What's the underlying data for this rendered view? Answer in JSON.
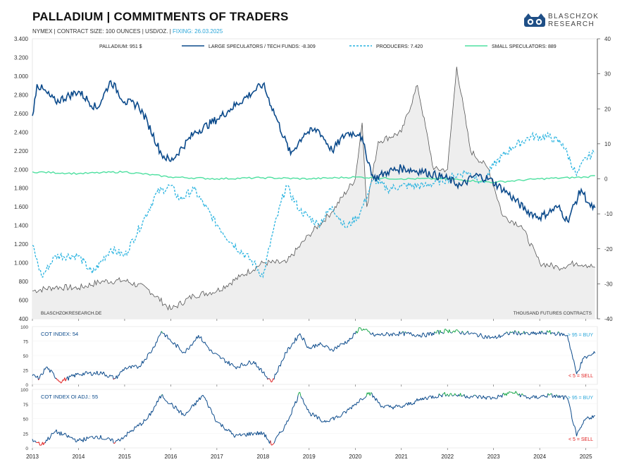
{
  "header": {
    "title": "PALLADIUM | COMMITMENTS OF TRADERS",
    "subtitle_main": "NYMEX | CONTRACT SIZE: 100 OUNCES | USD/OZ. | ",
    "subtitle_fixing": "FIXING: 26.03.2025"
  },
  "logo": {
    "line1": "BLASCHZOK",
    "line2": "RESEARCH",
    "icon": "owl-logo-icon"
  },
  "colors": {
    "price": "#555555",
    "large_specs": "#0b4a8b",
    "producers": "#29b3e0",
    "small_specs": "#4ee0a0",
    "cot_high": "#1aa84a",
    "cot_low": "#e02020",
    "cot_mid": "#0b4a8b"
  },
  "chart_data": [
    {
      "type": "line",
      "title": "PALLADIUM | COMMITMENTS OF TRADERS",
      "x_ticks": [
        "2013",
        "2014",
        "2015",
        "2016",
        "2017",
        "2018",
        "2019",
        "2020",
        "2021",
        "2022",
        "2023",
        "2024",
        "2025"
      ],
      "y_left": {
        "unit": "USD/OZ.",
        "ylim": [
          400,
          3400
        ],
        "ticks": [
          "3.400",
          "3.200",
          "3.000",
          "2.800",
          "2.600",
          "2.400",
          "2.200",
          "2.000",
          "1.800",
          "1.600",
          "1.400",
          "1.200",
          "1.000",
          "800",
          "600",
          "400"
        ]
      },
      "y_right": {
        "unit": "THOUSAND FUTURES CONTRACTS",
        "ylim": [
          -40,
          40
        ],
        "ticks": [
          "40",
          "30",
          "20",
          "10",
          "0",
          "-10",
          "-20",
          "-30",
          "-40"
        ]
      },
      "legend": [
        {
          "label": "PALLADIUM: 951 $",
          "style": "solid",
          "color": "#555555"
        },
        {
          "label": "LARGE SPECULATORS / TECH FUNDS: -8.309",
          "style": "solid",
          "color": "#0b4a8b"
        },
        {
          "label": "PRODUCERS: 7.420",
          "style": "dashed",
          "color": "#29b3e0"
        },
        {
          "label": "SMALL SPECULATORS: 889",
          "style": "solid",
          "color": "#4ee0a0"
        }
      ],
      "notes": {
        "bottom_left": "BLASCHZOKRESEARCH.DE",
        "bottom_right": "THOUSAND FUTURES CONTRACTS"
      },
      "series": [
        {
          "name": "PALLADIUM: 951 $",
          "axis": "left",
          "x": [
            2013.0,
            2013.5,
            2014.0,
            2014.5,
            2015.0,
            2015.5,
            2016.0,
            2016.5,
            2017.0,
            2017.5,
            2018.0,
            2018.5,
            2019.0,
            2019.5,
            2020.0,
            2020.15,
            2020.25,
            2020.5,
            2021.0,
            2021.35,
            2021.7,
            2022.0,
            2022.2,
            2022.5,
            2022.9,
            2023.2,
            2023.6,
            2024.0,
            2024.4,
            2024.8,
            2025.0,
            2025.2
          ],
          "values": [
            700,
            740,
            730,
            800,
            810,
            720,
            500,
            650,
            700,
            850,
            1000,
            1000,
            1300,
            1550,
            1900,
            2500,
            1600,
            2300,
            2400,
            2900,
            2000,
            2000,
            3100,
            2200,
            2000,
            1500,
            1400,
            1000,
            950,
            1000,
            980,
            951
          ]
        },
        {
          "name": "LARGE SPECULATORS / TECH FUNDS: -8.309",
          "axis": "right",
          "x": [
            2013.0,
            2013.1,
            2013.5,
            2014.0,
            2014.4,
            2014.7,
            2015.0,
            2015.3,
            2015.5,
            2015.8,
            2016.0,
            2016.5,
            2017.0,
            2017.3,
            2017.8,
            2018.0,
            2018.3,
            2018.6,
            2018.9,
            2019.2,
            2019.5,
            2019.8,
            2020.1,
            2020.4,
            2020.7,
            2021.0,
            2021.5,
            2022.0,
            2022.3,
            2022.6,
            2022.9,
            2023.3,
            2023.7,
            2024.0,
            2024.4,
            2024.6,
            2024.9,
            2025.1,
            2025.2
          ],
          "values": [
            18,
            27,
            22,
            25,
            20,
            28,
            22,
            21,
            16,
            7,
            5,
            13,
            17,
            20,
            25,
            27,
            17,
            7,
            13,
            14,
            8,
            13,
            13,
            0,
            2,
            3,
            2,
            0,
            -2,
            1,
            0,
            -4,
            -9,
            -11,
            -8,
            -12,
            -3,
            -8,
            -8.3
          ]
        },
        {
          "name": "PRODUCERS: 7.420",
          "axis": "right",
          "x": [
            2013.0,
            2013.2,
            2013.5,
            2014.0,
            2014.3,
            2014.7,
            2015.0,
            2015.4,
            2015.7,
            2016.0,
            2016.2,
            2016.5,
            2017.0,
            2017.3,
            2017.8,
            2018.0,
            2018.2,
            2018.5,
            2018.8,
            2019.2,
            2019.5,
            2019.8,
            2020.1,
            2020.4,
            2020.7,
            2021.0,
            2021.5,
            2022.0,
            2022.4,
            2022.8,
            2023.0,
            2023.4,
            2023.8,
            2024.2,
            2024.5,
            2024.8,
            2025.0,
            2025.2
          ],
          "values": [
            -19,
            -28,
            -22,
            -22,
            -27,
            -20,
            -22,
            -12,
            -4,
            -2,
            -6,
            -3,
            -13,
            -18,
            -24,
            -28,
            -16,
            -2,
            -9,
            -13,
            -8,
            -14,
            -10,
            0,
            -3,
            -2,
            -2,
            0,
            2,
            -1,
            4,
            9,
            12,
            12,
            10,
            1,
            6,
            7.4
          ]
        },
        {
          "name": "SMALL SPECULATORS: 889",
          "axis": "right",
          "x": [
            2013.0,
            2014.0,
            2015.0,
            2016.0,
            2017.0,
            2018.0,
            2019.0,
            2020.0,
            2021.0,
            2022.0,
            2023.0,
            2024.0,
            2025.0,
            2025.2
          ],
          "values": [
            2,
            1.5,
            2,
            0.5,
            0,
            0.3,
            0,
            0.5,
            0,
            0,
            -1,
            0,
            0.5,
            0.9
          ]
        }
      ]
    },
    {
      "type": "line",
      "title": "",
      "label": "COT INDEX: 54",
      "ylim": [
        0,
        100
      ],
      "y_ticks": [
        "100",
        "75",
        "50",
        "25",
        "0"
      ],
      "thresholds": {
        "buy_label": "> 95 = BUY",
        "sell_label": "< 5 = SELL",
        "buy_level": 95,
        "sell_level": 5
      },
      "x": [
        2013.0,
        2013.15,
        2013.3,
        2013.6,
        2014.0,
        2014.5,
        2014.8,
        2015.0,
        2015.3,
        2015.6,
        2015.8,
        2016.0,
        2016.3,
        2016.6,
        2016.9,
        2017.1,
        2017.4,
        2017.8,
        2018.0,
        2018.2,
        2018.5,
        2018.8,
        2019.0,
        2019.2,
        2019.5,
        2019.9,
        2020.1,
        2020.4,
        2021.0,
        2021.5,
        2022.0,
        2022.5,
        2023.0,
        2023.4,
        2023.8,
        2024.2,
        2024.6,
        2024.8,
        2024.95,
        2025.1,
        2025.2
      ],
      "values": [
        15,
        10,
        30,
        5,
        18,
        20,
        10,
        28,
        30,
        60,
        92,
        75,
        55,
        85,
        55,
        45,
        30,
        40,
        20,
        5,
        55,
        88,
        62,
        70,
        60,
        78,
        98,
        85,
        88,
        85,
        93,
        88,
        80,
        90,
        87,
        90,
        85,
        18,
        45,
        50,
        54
      ]
    },
    {
      "type": "line",
      "title": "",
      "label": "COT INDEX OI ADJ.: 55",
      "ylim": [
        0,
        100
      ],
      "y_ticks": [
        "100",
        "75",
        "50",
        "25",
        "0"
      ],
      "thresholds": {
        "buy_label": "> 95 = BUY",
        "sell_label": "< 5 = SELL",
        "buy_level": 95,
        "sell_level": 5
      },
      "x": [
        2013.0,
        2013.2,
        2013.5,
        2014.0,
        2014.4,
        2014.8,
        2015.0,
        2015.5,
        2015.8,
        2016.0,
        2016.3,
        2016.7,
        2017.0,
        2017.4,
        2017.8,
        2018.0,
        2018.2,
        2018.5,
        2018.8,
        2019.0,
        2019.3,
        2019.7,
        2020.0,
        2020.3,
        2020.6,
        2021.0,
        2021.5,
        2022.0,
        2022.5,
        2023.0,
        2023.4,
        2023.8,
        2024.2,
        2024.6,
        2024.8,
        2025.0,
        2025.2
      ],
      "values": [
        15,
        5,
        28,
        12,
        20,
        10,
        20,
        50,
        90,
        75,
        55,
        90,
        45,
        20,
        25,
        25,
        5,
        40,
        95,
        60,
        45,
        55,
        75,
        95,
        70,
        70,
        85,
        92,
        88,
        85,
        95,
        85,
        90,
        85,
        20,
        50,
        55
      ]
    }
  ]
}
